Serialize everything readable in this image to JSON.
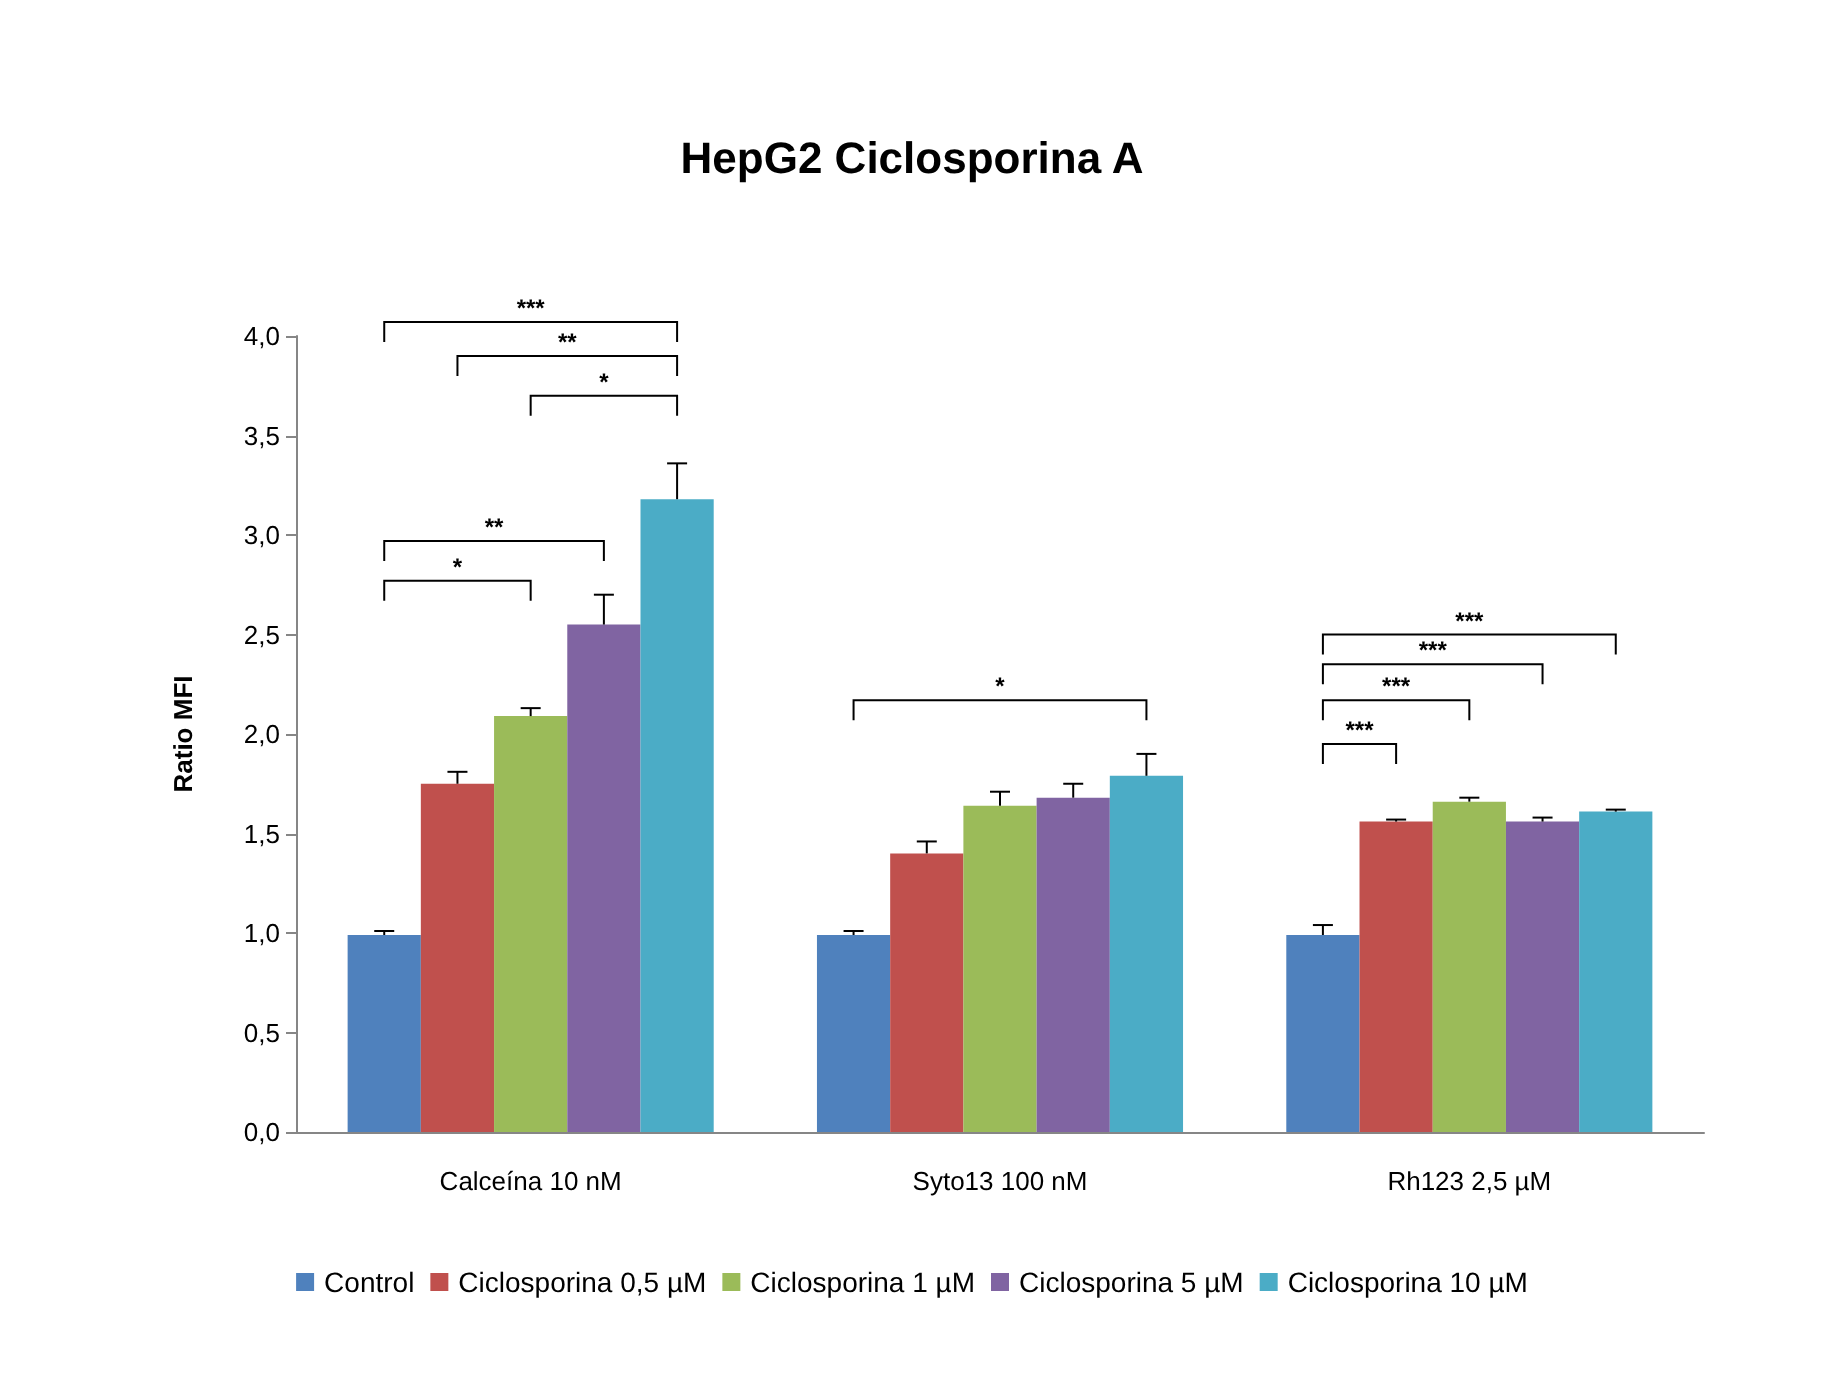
{
  "chart_data": {
    "type": "bar",
    "title": "HepG2 Ciclosporina A",
    "ylabel": "Ratio MFI",
    "categories": [
      "Calceína 10 nM",
      "Syto13 100 nM",
      "Rh123 2,5 µM"
    ],
    "series": [
      {
        "name": "Control",
        "color": "#4f81bd",
        "values": [
          0.99,
          0.99,
          0.99
        ],
        "errors": [
          0.02,
          0.02,
          0.05
        ]
      },
      {
        "name": "Ciclosporina 0,5 µM",
        "color": "#c0504d",
        "values": [
          1.75,
          1.4,
          1.56
        ],
        "errors": [
          0.06,
          0.06,
          0.01
        ]
      },
      {
        "name": "Ciclosporina 1 µM",
        "color": "#9bbb59",
        "values": [
          2.09,
          1.64,
          1.66
        ],
        "errors": [
          0.04,
          0.07,
          0.02
        ]
      },
      {
        "name": "Ciclosporina 5 µM",
        "color": "#8064a2",
        "values": [
          2.55,
          1.68,
          1.56
        ],
        "errors": [
          0.15,
          0.07,
          0.02
        ]
      },
      {
        "name": "Ciclosporina 10 µM",
        "color": "#4bacc6",
        "values": [
          3.18,
          1.79,
          1.61
        ],
        "errors": [
          0.18,
          0.11,
          0.01
        ]
      }
    ],
    "ylim": [
      0,
      4
    ],
    "yticks": [
      {
        "value": 0,
        "label": "0,0"
      },
      {
        "value": 0.5,
        "label": "0,5"
      },
      {
        "value": 1,
        "label": "1,0"
      },
      {
        "value": 1.5,
        "label": "1,5"
      },
      {
        "value": 2,
        "label": "2,0"
      },
      {
        "value": 2.5,
        "label": "2,5"
      },
      {
        "value": 3,
        "label": "3,0"
      },
      {
        "value": 3.5,
        "label": "3,5"
      },
      {
        "value": 4,
        "label": "4,0"
      }
    ],
    "annotations": [
      "***",
      "**",
      "*",
      "**",
      "*",
      "*",
      "***",
      "***",
      "***",
      "***"
    ],
    "grid": false,
    "legend": "bottom"
  }
}
